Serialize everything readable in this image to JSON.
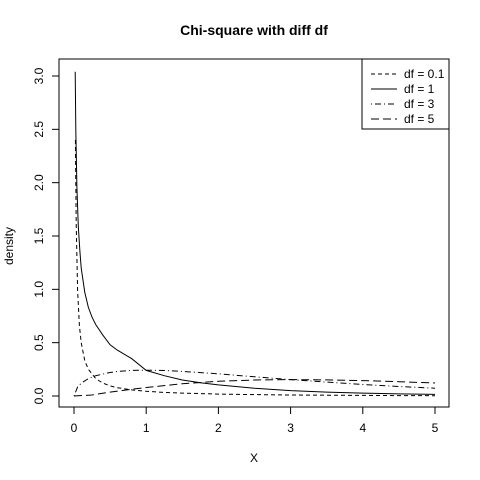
{
  "chart_data": {
    "type": "line",
    "title": "Chi-square with diff df",
    "xlabel": "X",
    "ylabel": "density",
    "xlim": [
      0,
      5
    ],
    "ylim": [
      0,
      3.1
    ],
    "x_ticks": [
      "0",
      "1",
      "2",
      "3",
      "4",
      "5"
    ],
    "y_ticks": [
      "0.0",
      "0.5",
      "1.0",
      "1.5",
      "2.0",
      "2.5",
      "3.0"
    ],
    "legend_position": "top-right",
    "series": [
      {
        "name": "df = 0.1",
        "line_style": "dashed-short",
        "points": [
          [
            0.02,
            2.4
          ],
          [
            0.03,
            1.62
          ],
          [
            0.05,
            0.99
          ],
          [
            0.075,
            0.66
          ],
          [
            0.1,
            0.5
          ],
          [
            0.15,
            0.33
          ],
          [
            0.2,
            0.25
          ],
          [
            0.3,
            0.163
          ],
          [
            0.4,
            0.121
          ],
          [
            0.5,
            0.095
          ],
          [
            0.6,
            0.078
          ],
          [
            0.8,
            0.057
          ],
          [
            1.0,
            0.044
          ],
          [
            1.25,
            0.034
          ],
          [
            1.5,
            0.027
          ],
          [
            2.0,
            0.018
          ],
          [
            2.5,
            0.013
          ],
          [
            3.0,
            0.0095
          ],
          [
            3.5,
            0.0071
          ],
          [
            4.0,
            0.0054
          ],
          [
            4.5,
            0.0041
          ],
          [
            5.0,
            0.0032
          ]
        ]
      },
      {
        "name": "df = 1",
        "line_style": "solid",
        "points": [
          [
            0.017,
            3.04
          ],
          [
            0.025,
            2.5
          ],
          [
            0.04,
            1.96
          ],
          [
            0.06,
            1.59
          ],
          [
            0.08,
            1.37
          ],
          [
            0.1,
            1.2
          ],
          [
            0.15,
            0.97
          ],
          [
            0.2,
            0.83
          ],
          [
            0.25,
            0.74
          ],
          [
            0.3,
            0.67
          ],
          [
            0.4,
            0.57
          ],
          [
            0.5,
            0.48
          ],
          [
            0.6,
            0.43
          ],
          [
            0.8,
            0.35
          ],
          [
            1.0,
            0.24
          ],
          [
            1.25,
            0.19
          ],
          [
            1.5,
            0.15
          ],
          [
            1.75,
            0.125
          ],
          [
            2.0,
            0.104
          ],
          [
            2.5,
            0.073
          ],
          [
            3.0,
            0.051
          ],
          [
            3.5,
            0.037
          ],
          [
            4.0,
            0.027
          ],
          [
            4.5,
            0.02
          ],
          [
            5.0,
            0.015
          ]
        ]
      },
      {
        "name": "df = 3",
        "line_style": "dot-dash",
        "points": [
          [
            0.0,
            0.0
          ],
          [
            0.05,
            0.085
          ],
          [
            0.1,
            0.12
          ],
          [
            0.2,
            0.163
          ],
          [
            0.3,
            0.19
          ],
          [
            0.4,
            0.205
          ],
          [
            0.5,
            0.22
          ],
          [
            0.6,
            0.23
          ],
          [
            0.8,
            0.24
          ],
          [
            1.0,
            0.242
          ],
          [
            1.25,
            0.239
          ],
          [
            1.5,
            0.231
          ],
          [
            2.0,
            0.208
          ],
          [
            2.5,
            0.18
          ],
          [
            3.0,
            0.154
          ],
          [
            3.5,
            0.13
          ],
          [
            4.0,
            0.108
          ],
          [
            4.5,
            0.089
          ],
          [
            5.0,
            0.073
          ]
        ]
      },
      {
        "name": "df = 5",
        "line_style": "long-dash",
        "points": [
          [
            0.0,
            0.0
          ],
          [
            0.25,
            0.009
          ],
          [
            0.5,
            0.037
          ],
          [
            0.75,
            0.059
          ],
          [
            1.0,
            0.08
          ],
          [
            1.5,
            0.115
          ],
          [
            2.0,
            0.138
          ],
          [
            2.5,
            0.15
          ],
          [
            3.0,
            0.154
          ],
          [
            3.5,
            0.151
          ],
          [
            4.0,
            0.144
          ],
          [
            4.5,
            0.134
          ],
          [
            5.0,
            0.122
          ]
        ]
      }
    ]
  }
}
